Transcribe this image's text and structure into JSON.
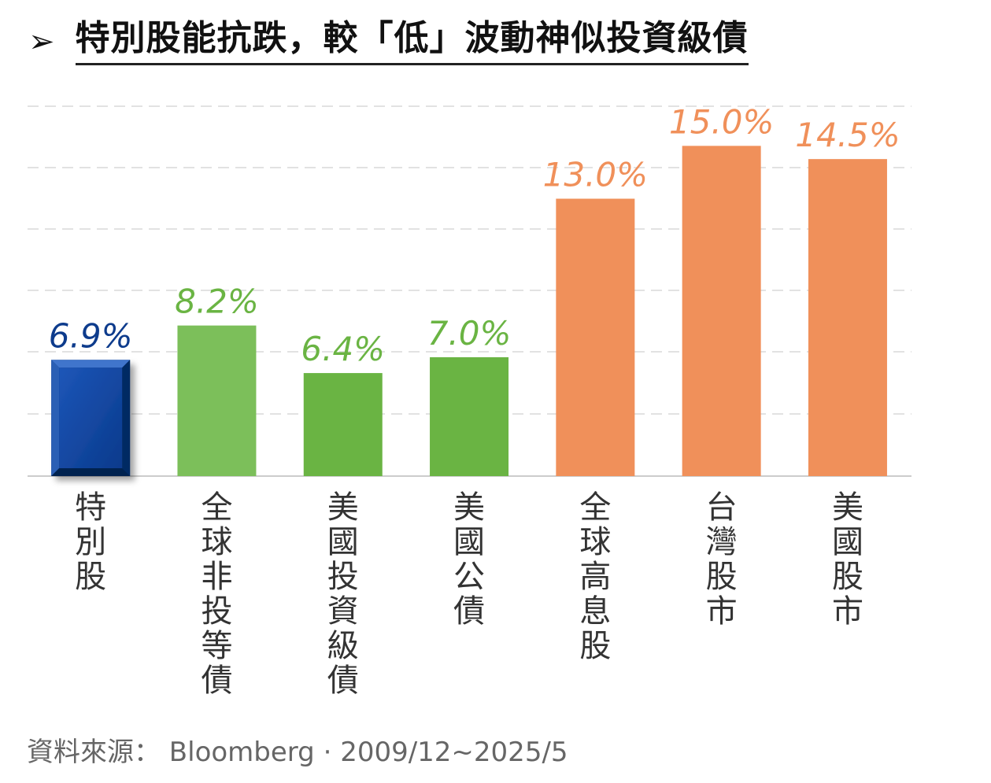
{
  "title": {
    "bullet": "➢",
    "text": "特別股能抗跌，較「低」波動神似投資級債"
  },
  "chart_data": {
    "type": "bar",
    "categories": [
      "特別股",
      "全球非投等債",
      "美國投資級債",
      "美國公債",
      "全球高息股",
      "台灣股市",
      "美國股市"
    ],
    "values": [
      6.9,
      8.2,
      6.4,
      7.0,
      13.0,
      15.0,
      14.5
    ],
    "data_labels": [
      "6.9%",
      "8.2%",
      "6.4%",
      "7.0%",
      "13.0%",
      "15.0%",
      "14.5%"
    ],
    "colors": [
      "#0a3d91",
      "#7cbf5a",
      "#6ab443",
      "#6ab443",
      "#f0905a",
      "#f0905a",
      "#f0905a"
    ],
    "label_colors": [
      "#0d3b8c",
      "#6ab443",
      "#6ab443",
      "#6ab443",
      "#f0905a",
      "#f0905a",
      "#f0905a"
    ],
    "ylim": [
      2.5,
      16.5
    ],
    "grid": true,
    "xlabel": "",
    "ylabel": ""
  },
  "source": "資料來源： Bloomberg · 2009/12~2025/5"
}
